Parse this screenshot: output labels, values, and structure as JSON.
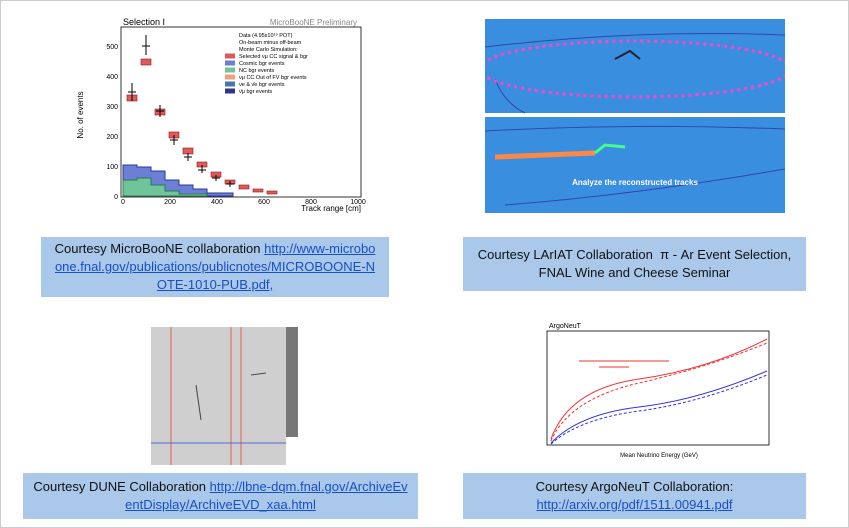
{
  "slide": {
    "panels": [
      {
        "image": {
          "title": "Selection I",
          "watermark": "MicroBooNE Preliminary",
          "y_label": "No. of events",
          "x_label": "Track range [cm]",
          "legend": [
            "Data (4.95x10¹⁹ POT)",
            "On-beam minus off-beam",
            "Monte Carlo Simulation:",
            "Selected νμ CC signal & bgr",
            "Cosmic bgr events",
            "NC bgr events",
            "νμ CC Out of FV bgr events",
            "νe & ν̄e bgr events",
            "ν̄μ bgr events"
          ],
          "yticks": [
            "0",
            "100",
            "200",
            "300",
            "400",
            "500"
          ],
          "xticks": [
            "0",
            "200",
            "400",
            "600",
            "800",
            "1000"
          ]
        },
        "caption": {
          "text": "Courtesy MicroBooNE collaboration",
          "link": "http://www-microboone.fnal.gov/publications/publicnotes/MICROBOONE-NOTE-1010-PUB.pdf,"
        }
      },
      {
        "image": {
          "annotation": "Analyze the reconstructed tracks"
        },
        "caption": {
          "text": "Courtesy LArIAT Collaboration  π - Ar Event Selection, FNAL Wine and Cheese Seminar"
        }
      },
      {
        "caption": {
          "text": "Courtesy DUNE Collaboration",
          "link": "http://lbne-dqm.fnal.gov/ArchiveEventDisplay/ArchiveEVD_xaa.html"
        }
      },
      {
        "image": {
          "title": "ArgoNeuT",
          "x_label": "Mean Neutrino Energy (GeV)"
        },
        "caption": {
          "text": "Courtesy ArgoNeuT Collaboration:",
          "link": "http://arxiv.org/pdf/1511.00941.pdf"
        }
      }
    ]
  }
}
